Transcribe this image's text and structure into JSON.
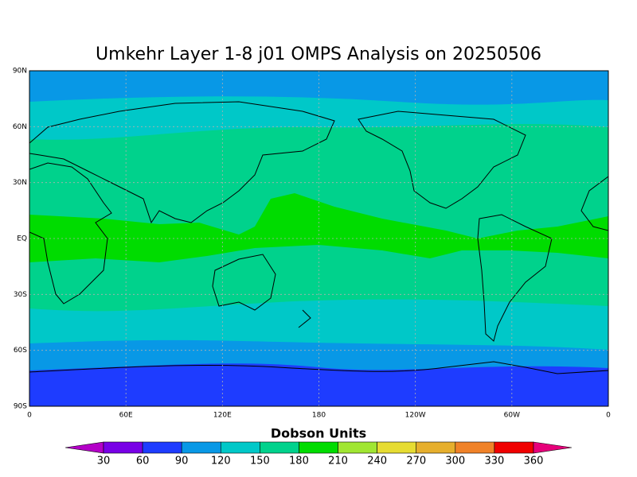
{
  "title": "Umkehr Layer 1-8 j01 OMPS Analysis on 20250506",
  "map": {
    "yticks": [
      "90N",
      "60N",
      "30N",
      "EQ",
      "30S",
      "60S",
      "90S"
    ],
    "xticks": [
      "0",
      "60E",
      "120E",
      "180",
      "120W",
      "60W",
      "0"
    ]
  },
  "colorbar": {
    "title": "Dobson Units",
    "labels": [
      30,
      60,
      90,
      120,
      150,
      180,
      210,
      240,
      270,
      300,
      330,
      360
    ],
    "colors": [
      "#b400c8",
      "#7800e6",
      "#1e3cff",
      "#0898e6",
      "#00c8c8",
      "#00d28c",
      "#00dc00",
      "#a0e632",
      "#e6dc32",
      "#e6af2d",
      "#f08228",
      "#f00000",
      "#e6007a"
    ]
  }
}
